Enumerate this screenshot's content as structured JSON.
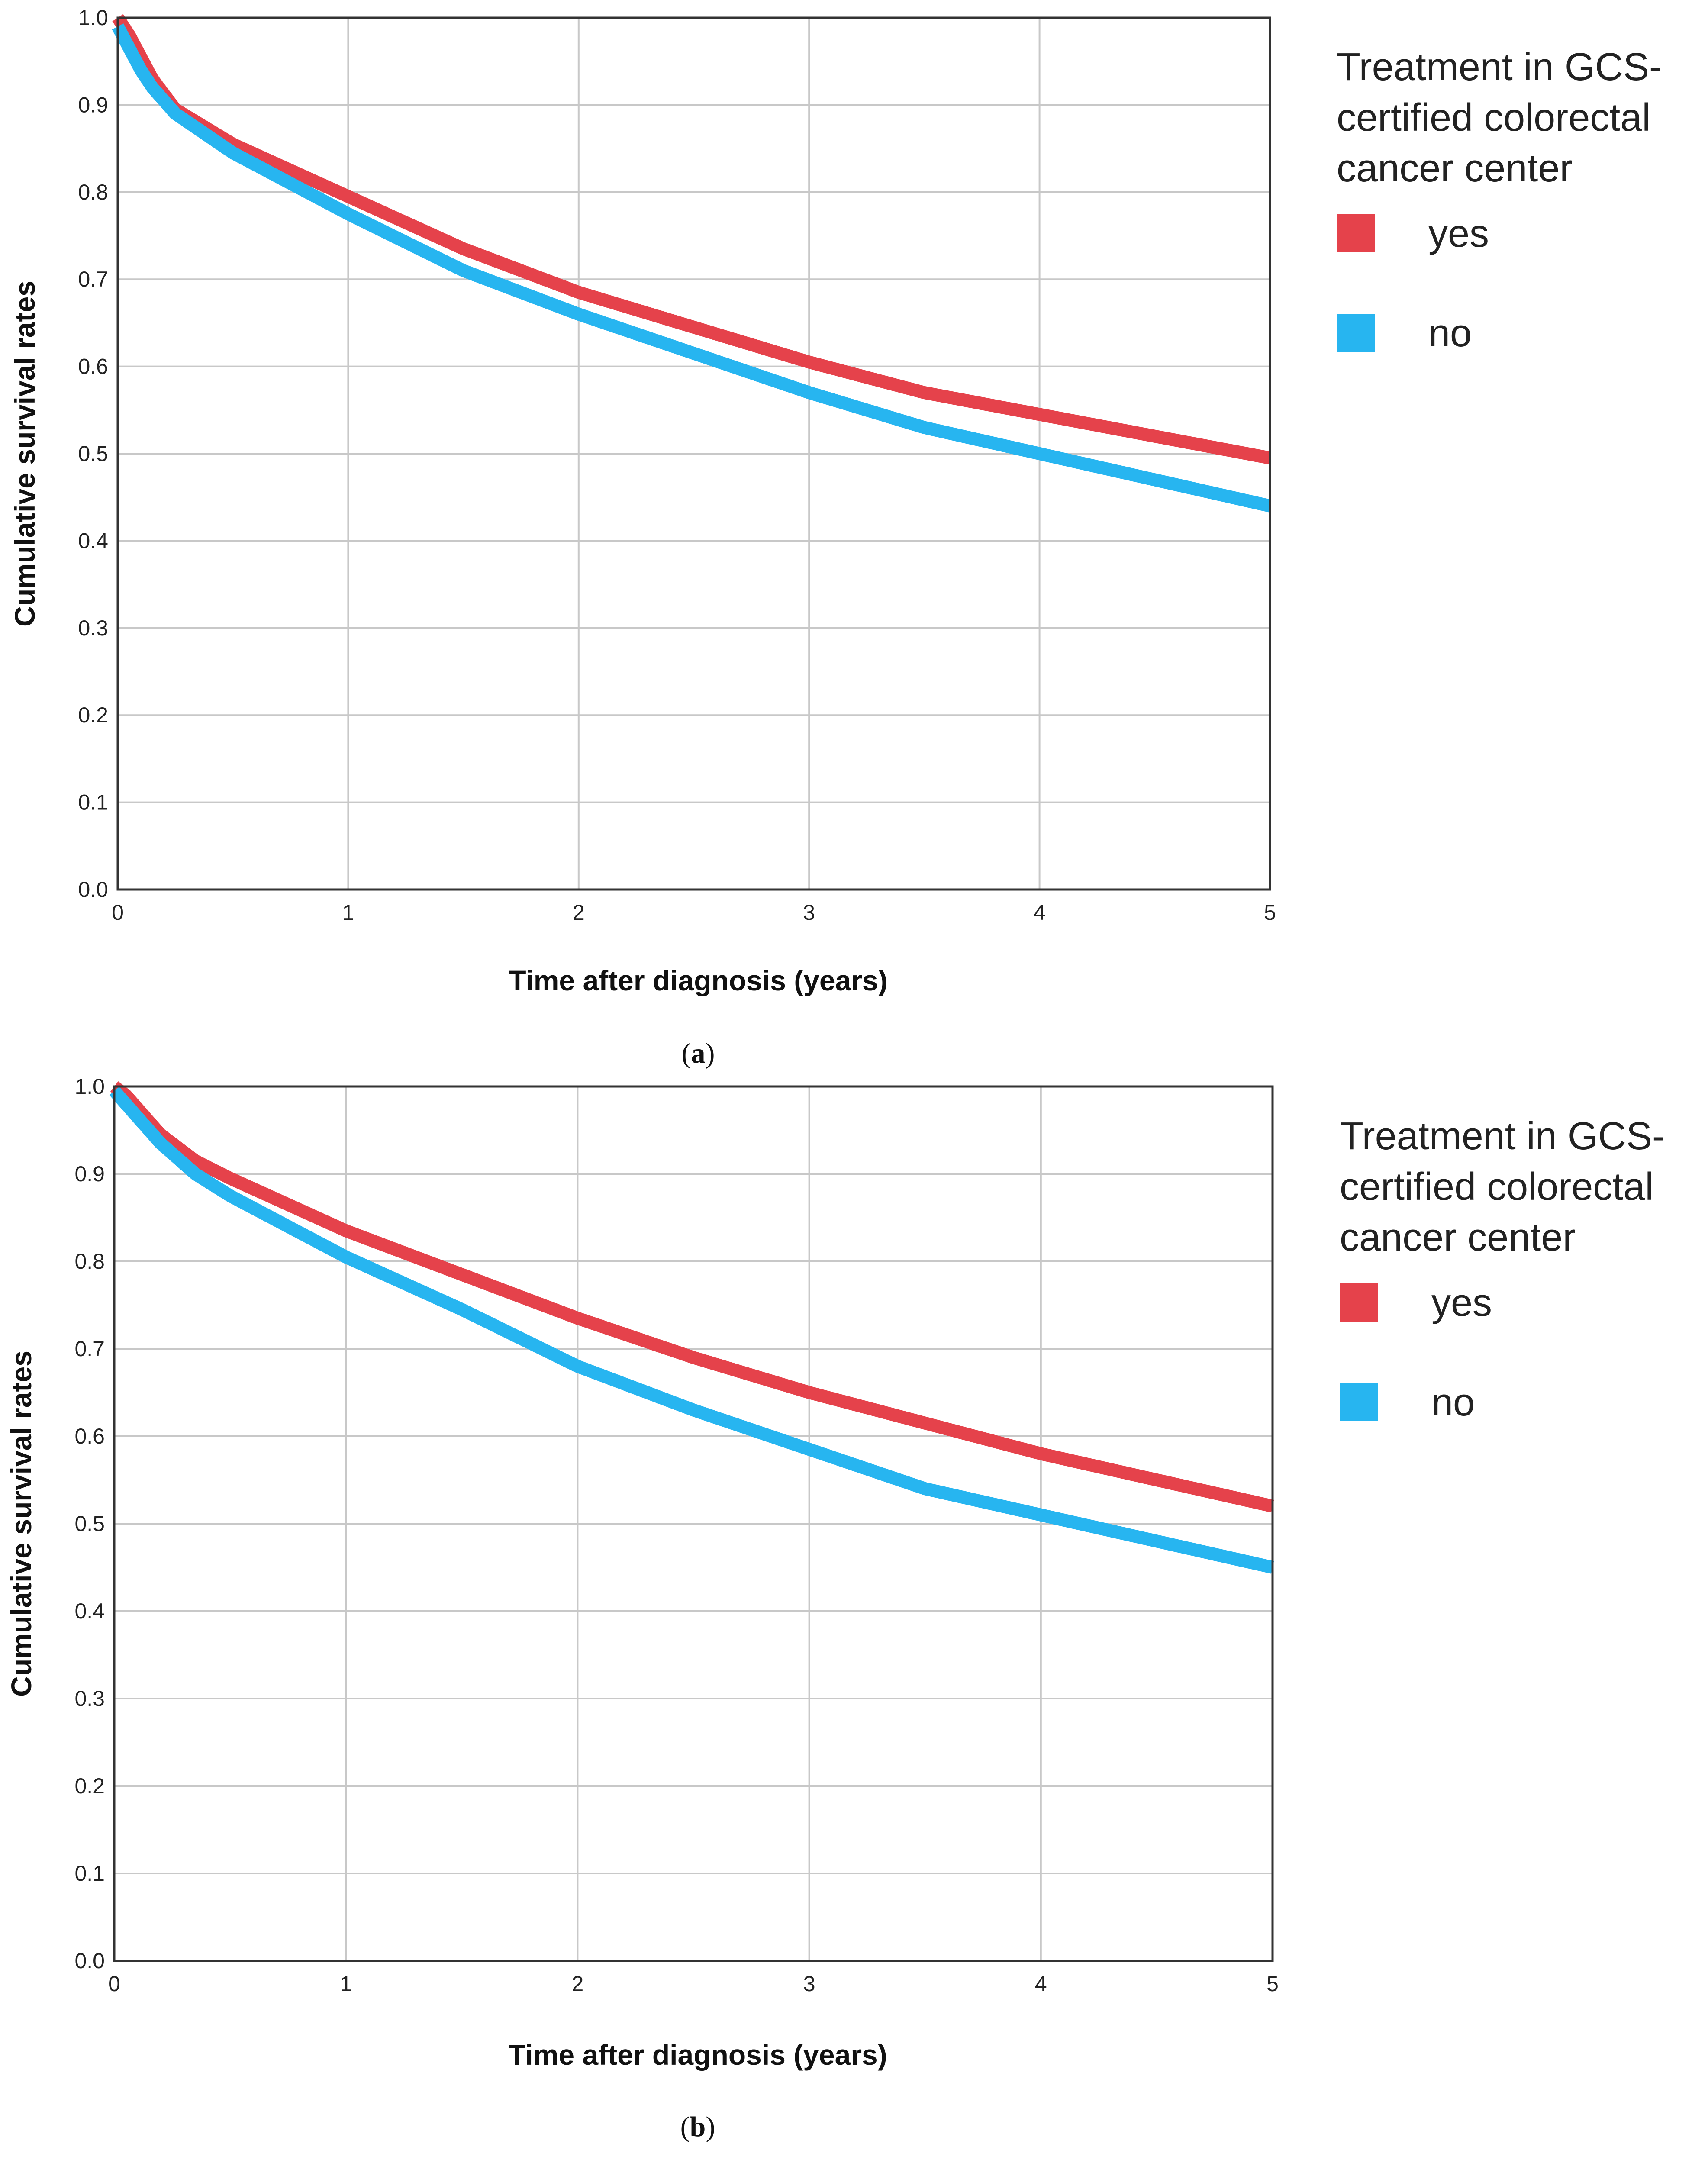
{
  "chart_data": [
    {
      "type": "line",
      "panel": "a",
      "caption": "(a)",
      "caption_letter": "a",
      "xlabel": "Time after diagnosis (years)",
      "ylabel": "Cumulative survival rates",
      "xlim": [
        0,
        5
      ],
      "ylim": [
        0,
        1
      ],
      "xticks": [
        "0",
        "1",
        "2",
        "3",
        "4",
        "5"
      ],
      "yticks": [
        "0.0",
        "0.1",
        "0.2",
        "0.3",
        "0.4",
        "0.5",
        "0.6",
        "0.7",
        "0.8",
        "0.9",
        "1.0"
      ],
      "grid": true,
      "legend": {
        "title_lines": [
          "Treatment in GCS-",
          "certified colorectal",
          "cancer center"
        ],
        "placement": "right"
      },
      "series": [
        {
          "name": "yes",
          "color": "#e5424b",
          "x": [
            0,
            0.05,
            0.1,
            0.15,
            0.25,
            0.5,
            0.75,
            1,
            1.5,
            2,
            2.5,
            3,
            3.5,
            4,
            4.5,
            5
          ],
          "y": [
            1.0,
            0.98,
            0.955,
            0.93,
            0.895,
            0.855,
            0.825,
            0.795,
            0.735,
            0.685,
            0.645,
            0.605,
            0.57,
            0.545,
            0.52,
            0.495
          ]
        },
        {
          "name": "no",
          "color": "#27b5f0",
          "x": [
            0,
            0.05,
            0.1,
            0.15,
            0.25,
            0.5,
            0.75,
            1,
            1.5,
            2,
            2.5,
            3,
            3.5,
            4,
            4.5,
            5
          ],
          "y": [
            0.99,
            0.965,
            0.94,
            0.92,
            0.89,
            0.845,
            0.81,
            0.775,
            0.71,
            0.66,
            0.615,
            0.57,
            0.53,
            0.5,
            0.47,
            0.44
          ]
        }
      ]
    },
    {
      "type": "line",
      "panel": "b",
      "caption": "(b)",
      "caption_letter": "b",
      "xlabel": "Time after diagnosis (years)",
      "ylabel": "Cumulative survival rates",
      "xlim": [
        0,
        5
      ],
      "ylim": [
        0,
        1
      ],
      "xticks": [
        "0",
        "1",
        "2",
        "3",
        "4",
        "5"
      ],
      "yticks": [
        "0.0",
        "0.1",
        "0.2",
        "0.3",
        "0.4",
        "0.5",
        "0.6",
        "0.7",
        "0.8",
        "0.9",
        "1.0"
      ],
      "grid": true,
      "legend": {
        "title_lines": [
          "Treatment in GCS-",
          "certified colorectal",
          "cancer center"
        ],
        "placement": "right"
      },
      "series": [
        {
          "name": "yes",
          "color": "#e5424b",
          "x": [
            0,
            0.05,
            0.1,
            0.2,
            0.35,
            0.5,
            0.75,
            1,
            1.5,
            2,
            2.5,
            3,
            3.5,
            4,
            4.5,
            5
          ],
          "y": [
            1.0,
            0.99,
            0.975,
            0.945,
            0.915,
            0.895,
            0.865,
            0.835,
            0.785,
            0.735,
            0.69,
            0.65,
            0.615,
            0.58,
            0.55,
            0.52
          ]
        },
        {
          "name": "no",
          "color": "#27b5f0",
          "x": [
            0,
            0.05,
            0.1,
            0.2,
            0.35,
            0.5,
            0.75,
            1,
            1.5,
            2,
            2.5,
            3,
            3.5,
            4,
            4.5,
            5
          ],
          "y": [
            0.995,
            0.98,
            0.965,
            0.935,
            0.9,
            0.875,
            0.84,
            0.805,
            0.745,
            0.68,
            0.63,
            0.585,
            0.54,
            0.51,
            0.48,
            0.45
          ]
        }
      ]
    }
  ]
}
